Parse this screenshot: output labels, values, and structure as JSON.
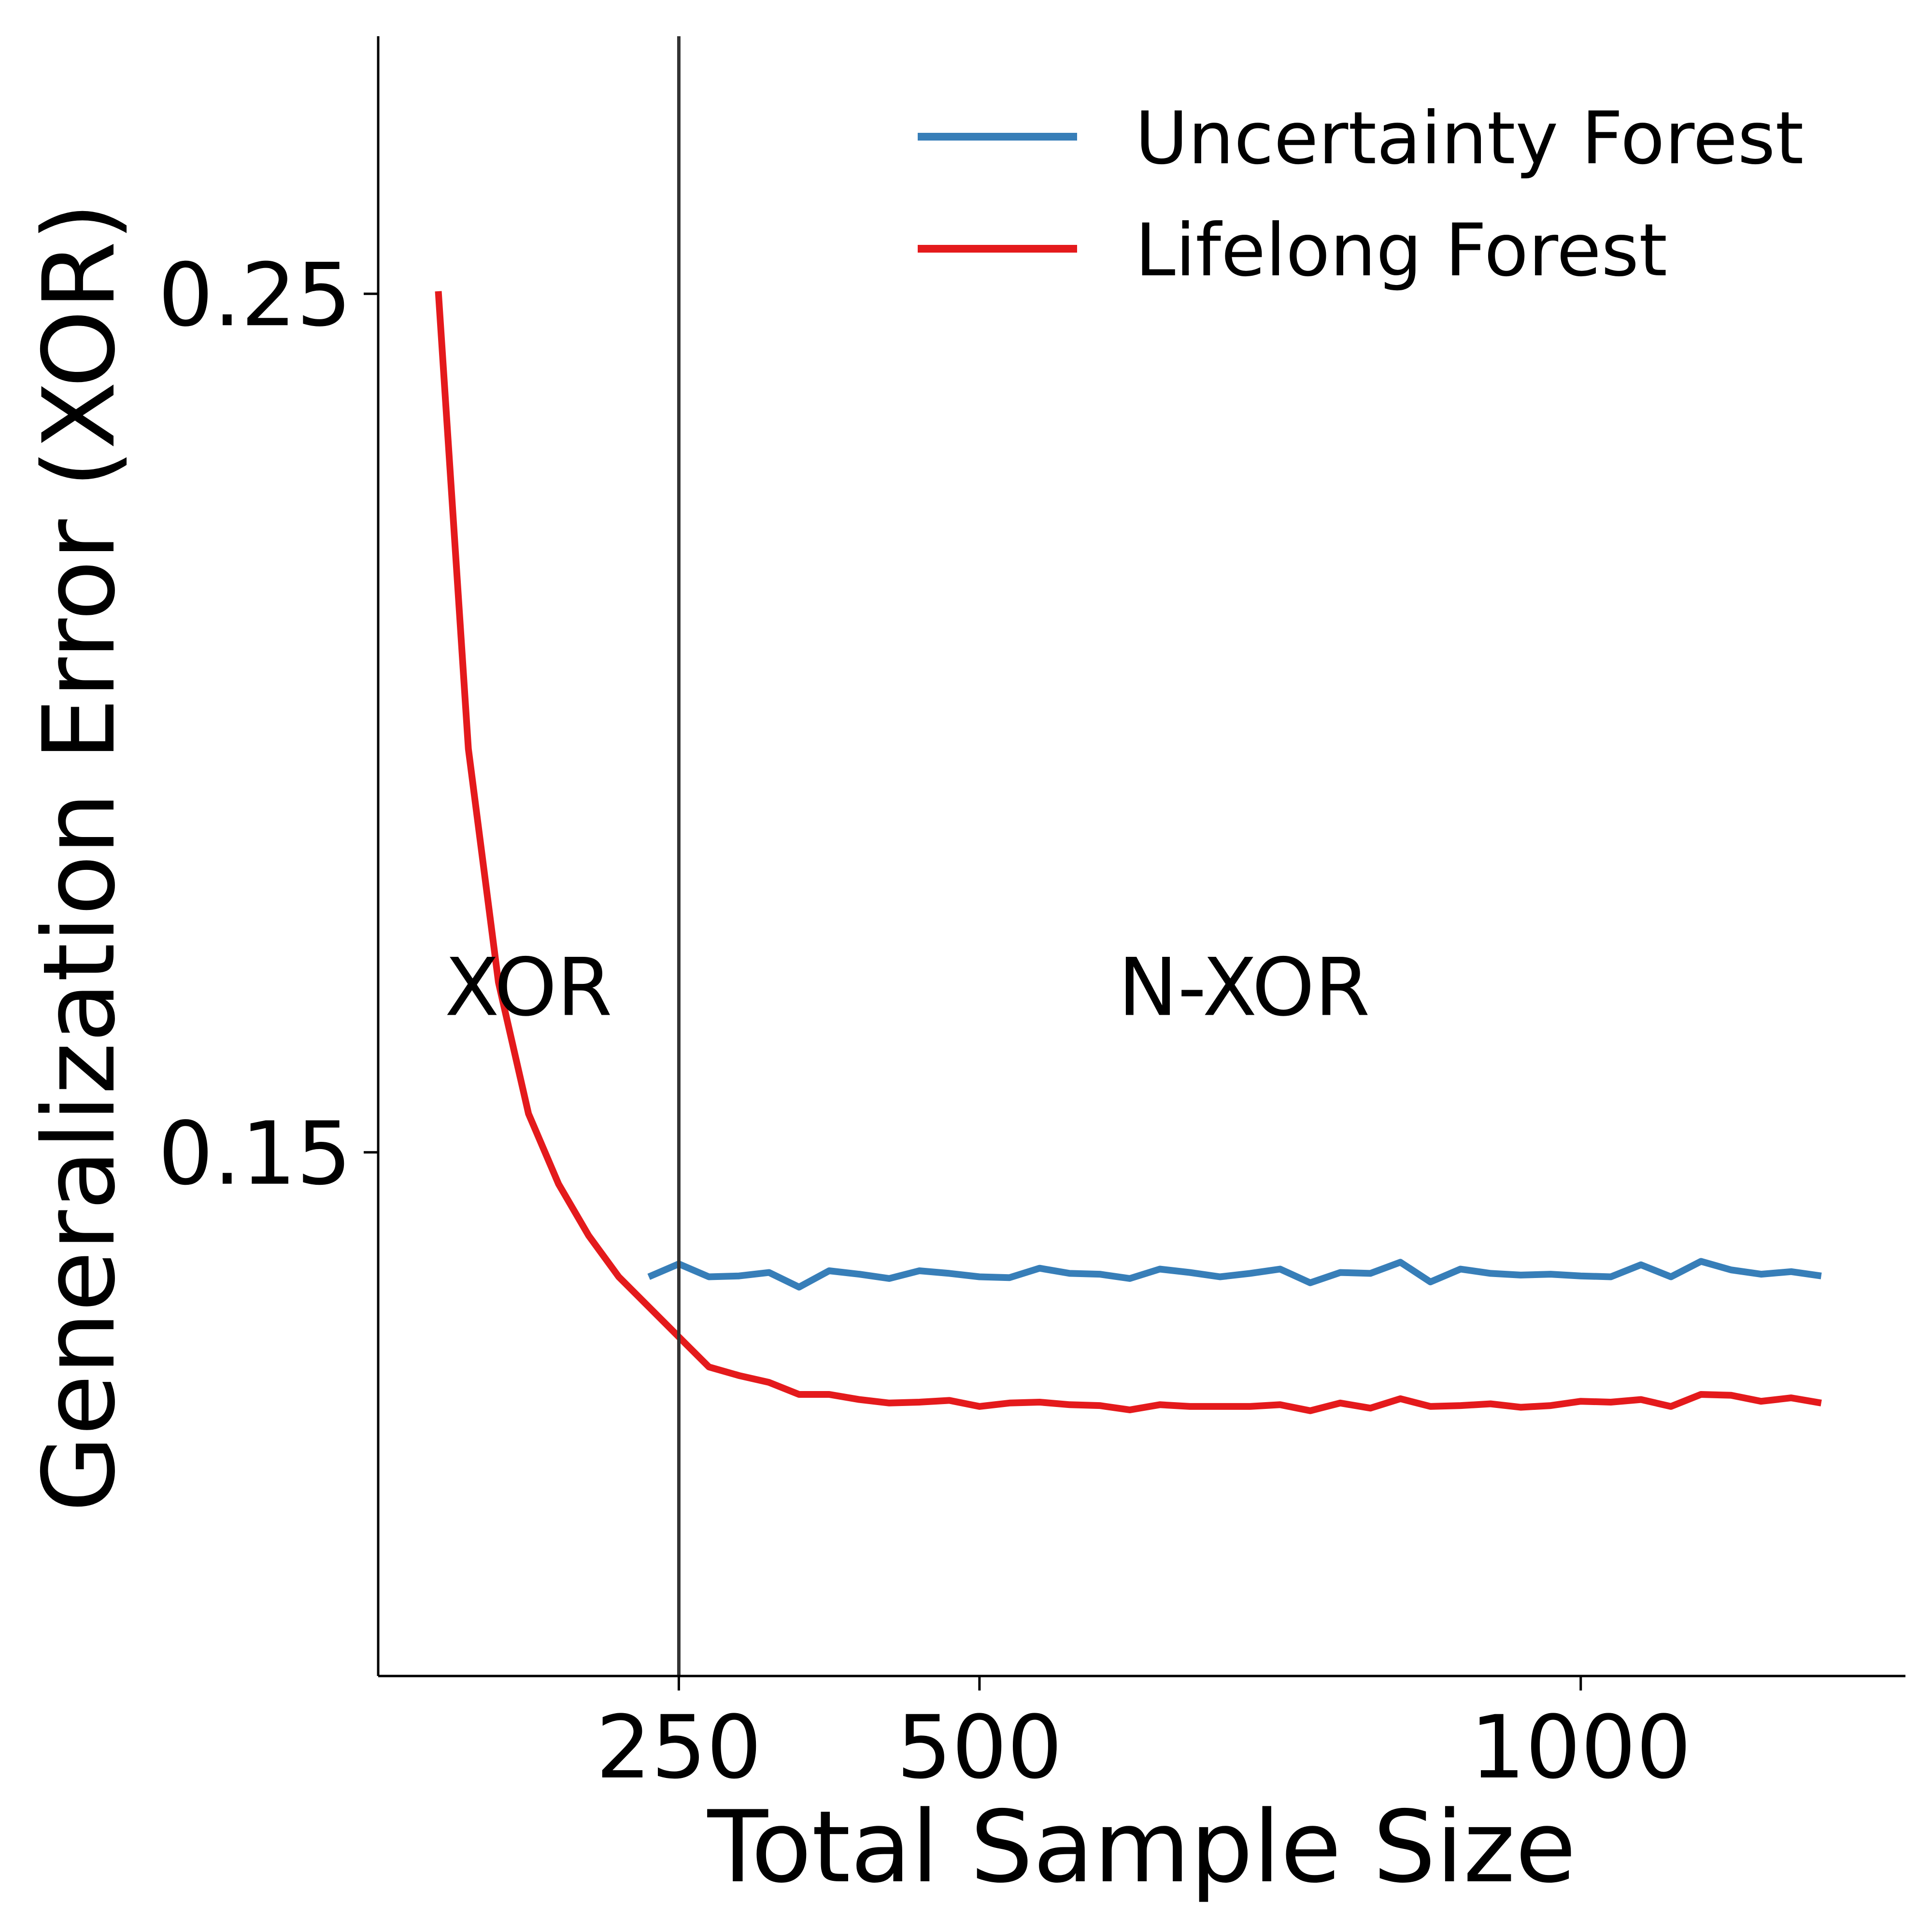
{
  "chart_data": {
    "type": "line",
    "xlabel": "Total Sample Size",
    "ylabel": "Generalization Error (XOR)",
    "xlim": [
      0,
      1270
    ],
    "ylim": [
      0.089,
      0.28
    ],
    "xticks": [
      250,
      500,
      1000
    ],
    "xtick_labels": [
      "250",
      "500",
      "1000"
    ],
    "yticks": [
      0.25,
      0.15
    ],
    "ytick_labels": [
      "0.25",
      "0.15"
    ],
    "grid": false,
    "legend_position": "top-right",
    "separator_x": 250,
    "regions": [
      {
        "label": "XOR",
        "x": 125,
        "y": 0.166
      },
      {
        "label": "N-XOR",
        "x": 720,
        "y": 0.166
      }
    ],
    "series": [
      {
        "name": "Uncertainty Forest",
        "color": "#377eb8",
        "x": [
          225,
          250,
          275,
          300,
          325,
          350,
          375,
          400,
          425,
          450,
          475,
          500,
          525,
          550,
          575,
          600,
          625,
          650,
          675,
          700,
          725,
          750,
          775,
          800,
          825,
          850,
          875,
          900,
          925,
          950,
          975,
          1000,
          1025,
          1050,
          1075,
          1100,
          1125,
          1150,
          1175,
          1200
        ],
        "values": [
          0.1355,
          0.137,
          0.1355,
          0.1356,
          0.136,
          0.1343,
          0.1362,
          0.1358,
          0.1353,
          0.1362,
          0.1359,
          0.1355,
          0.1354,
          0.1365,
          0.1359,
          0.1358,
          0.1353,
          0.1364,
          0.136,
          0.1355,
          0.1359,
          0.1364,
          0.1348,
          0.136,
          0.1359,
          0.1372,
          0.1349,
          0.1364,
          0.1359,
          0.1357,
          0.1358,
          0.1356,
          0.1355,
          0.1369,
          0.1355,
          0.1373,
          0.1363,
          0.1358,
          0.1361,
          0.1356
        ]
      },
      {
        "name": "Lifelong Forest",
        "color": "#e41a1c",
        "x": [
          50,
          75,
          100,
          125,
          150,
          175,
          200,
          225,
          250,
          275,
          300,
          325,
          350,
          375,
          400,
          425,
          450,
          475,
          500,
          525,
          550,
          575,
          600,
          625,
          650,
          675,
          700,
          725,
          750,
          775,
          800,
          825,
          850,
          875,
          900,
          925,
          950,
          975,
          1000,
          1025,
          1050,
          1075,
          1100,
          1125,
          1150,
          1175,
          1200
        ],
        "values": [
          0.2503,
          0.197,
          0.1698,
          0.1545,
          0.1463,
          0.1403,
          0.1355,
          0.132,
          0.1285,
          0.125,
          0.124,
          0.1232,
          0.1218,
          0.1218,
          0.1212,
          0.1208,
          0.1209,
          0.1211,
          0.1204,
          0.1208,
          0.1209,
          0.1206,
          0.1205,
          0.12,
          0.1206,
          0.1204,
          0.1204,
          0.1204,
          0.1206,
          0.1199,
          0.1208,
          0.1202,
          0.1213,
          0.1204,
          0.1205,
          0.1207,
          0.1203,
          0.1205,
          0.121,
          0.1209,
          0.1212,
          0.1204,
          0.1218,
          0.1217,
          0.121,
          0.1214,
          0.1208
        ]
      }
    ]
  }
}
